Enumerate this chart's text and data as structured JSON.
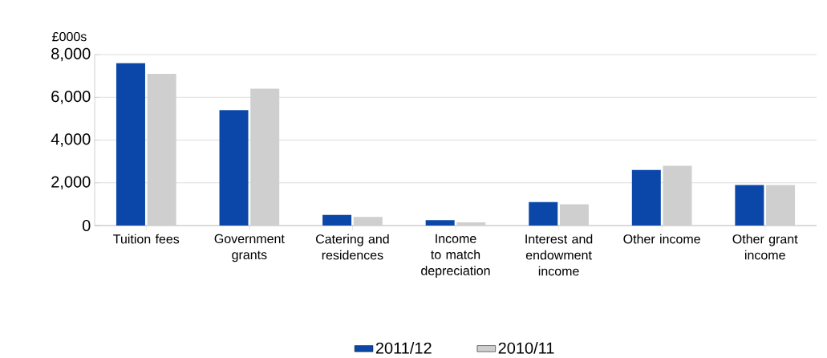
{
  "chart_data": {
    "type": "bar",
    "ylabel": "£000s",
    "categories": [
      "Tuition fees",
      "Government grants",
      "Catering and residences",
      "Income to match depreciation",
      "Interest and endowment income",
      "Other income",
      "Other grant income"
    ],
    "series": [
      {
        "name": "2011/12",
        "color": "#0a47a9",
        "values": [
          7600,
          5400,
          500,
          250,
          1100,
          2600,
          1900
        ]
      },
      {
        "name": "2010/11",
        "color": "#cfcfcf",
        "values": [
          7100,
          6400,
          400,
          150,
          1000,
          2800,
          1900
        ]
      }
    ],
    "ylim": [
      0,
      8000
    ],
    "yticks": [
      0,
      {
        "value": 2000,
        "label": "2,000"
      },
      {
        "value": 4000,
        "label": "4,000"
      },
      {
        "value": 6000,
        "label": "6,000"
      },
      {
        "value": 8000,
        "label": "8,000"
      }
    ],
    "grid": "y",
    "legend": "bottom"
  }
}
